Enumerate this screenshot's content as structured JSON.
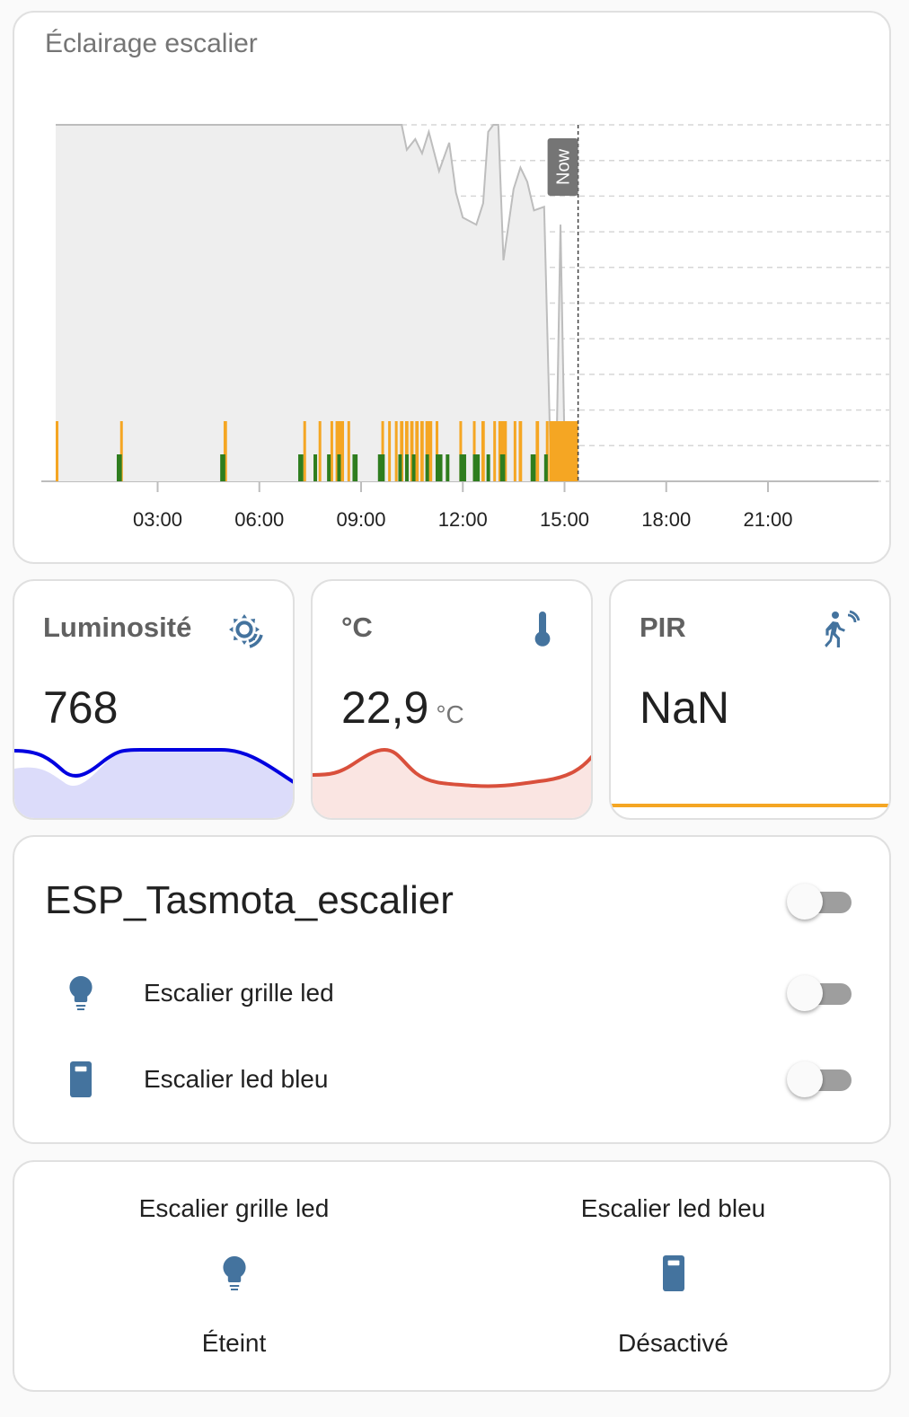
{
  "history_card": {
    "title": "Éclairage escalier",
    "now_label": "Now"
  },
  "chart_data": {
    "type": "area",
    "x_ticks": [
      "03:00",
      "06:00",
      "09:00",
      "12:00",
      "15:00",
      "18:00",
      "21:00"
    ],
    "xlim_hours": [
      0,
      24
    ],
    "now_hour": 15.4,
    "grid": true,
    "colors": {
      "line": "#bdbdbd",
      "fill": "#eeeeee",
      "on_orange": "#f5a623",
      "on_green": "#2e7d1e"
    },
    "series": [
      {
        "line_relative_level": [
          [
            0.0,
            1.0
          ],
          [
            10.2,
            1.0
          ],
          [
            10.35,
            0.93
          ],
          [
            10.6,
            0.96
          ],
          [
            10.8,
            0.92
          ],
          [
            11.0,
            0.98
          ],
          [
            11.3,
            0.87
          ],
          [
            11.6,
            0.95
          ],
          [
            11.8,
            0.81
          ],
          [
            12.0,
            0.74
          ],
          [
            12.4,
            0.72
          ],
          [
            12.6,
            0.78
          ],
          [
            12.75,
            0.98
          ],
          [
            12.9,
            1.0
          ],
          [
            13.05,
            1.0
          ],
          [
            13.2,
            0.62
          ],
          [
            13.5,
            0.82
          ],
          [
            13.7,
            0.88
          ],
          [
            13.9,
            0.84
          ],
          [
            14.1,
            0.76
          ],
          [
            14.4,
            0.77
          ],
          [
            14.6,
            0.02
          ],
          [
            14.75,
            0.02
          ],
          [
            14.88,
            0.72
          ],
          [
            15.0,
            0.1
          ],
          [
            15.2,
            0.02
          ],
          [
            15.4,
            0.02
          ]
        ]
      },
      {
        "on_periods_orange": [
          [
            0.0,
            0.08
          ],
          [
            1.9,
            1.97
          ],
          [
            4.95,
            5.05
          ],
          [
            7.3,
            7.38
          ],
          [
            7.75,
            7.82
          ],
          [
            8.1,
            8.15
          ],
          [
            8.25,
            8.5
          ],
          [
            8.6,
            8.65
          ],
          [
            9.6,
            9.65
          ],
          [
            9.8,
            9.85
          ],
          [
            10.0,
            10.05
          ],
          [
            10.15,
            10.25
          ],
          [
            10.3,
            10.4
          ],
          [
            10.45,
            10.55
          ],
          [
            10.6,
            10.7
          ],
          [
            10.75,
            10.85
          ],
          [
            10.9,
            11.1
          ],
          [
            11.2,
            11.25
          ],
          [
            11.9,
            11.95
          ],
          [
            12.3,
            12.35
          ],
          [
            12.55,
            12.65
          ],
          [
            12.9,
            12.95
          ],
          [
            13.05,
            13.3
          ],
          [
            13.5,
            13.55
          ],
          [
            13.65,
            13.75
          ],
          [
            14.15,
            14.25
          ],
          [
            14.45,
            14.5
          ],
          [
            14.55,
            15.4
          ]
        ],
        "on_periods_green": [
          [
            1.8,
            1.95
          ],
          [
            4.85,
            5.0
          ],
          [
            7.15,
            7.3
          ],
          [
            7.6,
            7.7
          ],
          [
            8.0,
            8.1
          ],
          [
            8.3,
            8.35
          ],
          [
            8.75,
            8.9
          ],
          [
            9.5,
            9.7
          ],
          [
            10.1,
            10.15
          ],
          [
            10.3,
            10.35
          ],
          [
            10.5,
            10.6
          ],
          [
            10.9,
            10.95
          ],
          [
            11.2,
            11.4
          ],
          [
            11.5,
            11.6
          ],
          [
            11.9,
            12.1
          ],
          [
            12.3,
            12.5
          ],
          [
            12.7,
            12.8
          ],
          [
            13.1,
            13.25
          ],
          [
            14.0,
            14.15
          ],
          [
            14.4,
            14.5
          ]
        ]
      }
    ]
  },
  "sensors": [
    {
      "name": "Luminosité",
      "icon": "brightness-auto-icon",
      "value": "768",
      "unit": "",
      "line_color": "#0000e0",
      "fill_color": "#dcdcfa"
    },
    {
      "name": "°C",
      "icon": "thermometer-icon",
      "value": "22,9",
      "unit": "°C",
      "line_color": "#d9503c",
      "fill_color": "#fae5e2"
    },
    {
      "name": "PIR",
      "icon": "motion-sensor-icon",
      "value": "NaN",
      "unit": "",
      "line_color": "#f5a623",
      "fill_color": "#ffffff"
    }
  ],
  "entities": {
    "title": "ESP_Tasmota_escalier",
    "rows": [
      {
        "label": "Escalier grille led",
        "icon": "lightbulb-icon"
      },
      {
        "label": "Escalier led bleu",
        "icon": "light-switch-icon"
      }
    ]
  },
  "glance": [
    {
      "name": "Escalier grille led",
      "icon": "lightbulb-icon",
      "state": "Éteint"
    },
    {
      "name": "Escalier led bleu",
      "icon": "light-switch-icon",
      "state": "Désactivé"
    }
  ],
  "accent_color": "#44739e"
}
